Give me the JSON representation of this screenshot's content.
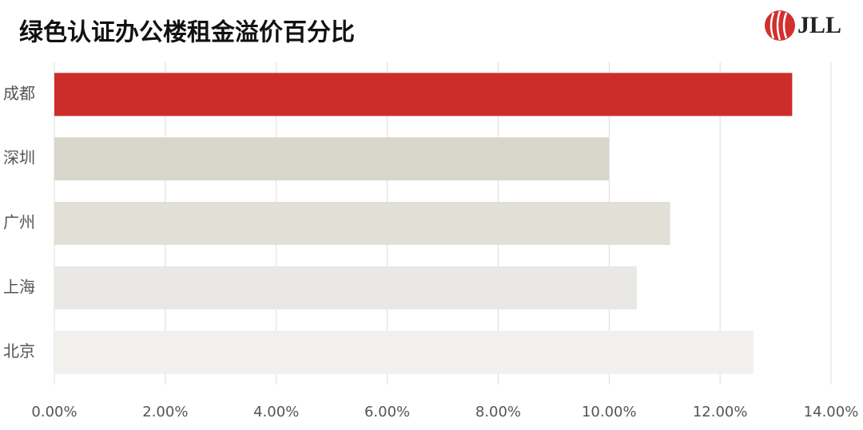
{
  "chart_data": {
    "type": "barh",
    "title": "绿色认证办公楼租金溢价百分比",
    "logo": "JLL",
    "categories": [
      "成都",
      "深圳",
      "广州",
      "上海",
      "北京"
    ],
    "values": [
      13.3,
      10.0,
      11.1,
      10.5,
      12.6
    ],
    "colors": [
      "#cc2d2b",
      "#d9d7cc",
      "#e1dfd6",
      "#e9e8e4",
      "#f1f0ed"
    ],
    "xlim": [
      0,
      14
    ],
    "xticks": [
      {
        "value": 0,
        "label": "0.00%"
      },
      {
        "value": 2,
        "label": "2.00%"
      },
      {
        "value": 4,
        "label": "4.00%"
      },
      {
        "value": 6,
        "label": "6.00%"
      },
      {
        "value": 8,
        "label": "8.00%"
      },
      {
        "value": 10,
        "label": "10.00%"
      },
      {
        "value": 12,
        "label": "12.00%"
      },
      {
        "value": 14,
        "label": "14.00%"
      }
    ],
    "grid": true
  }
}
